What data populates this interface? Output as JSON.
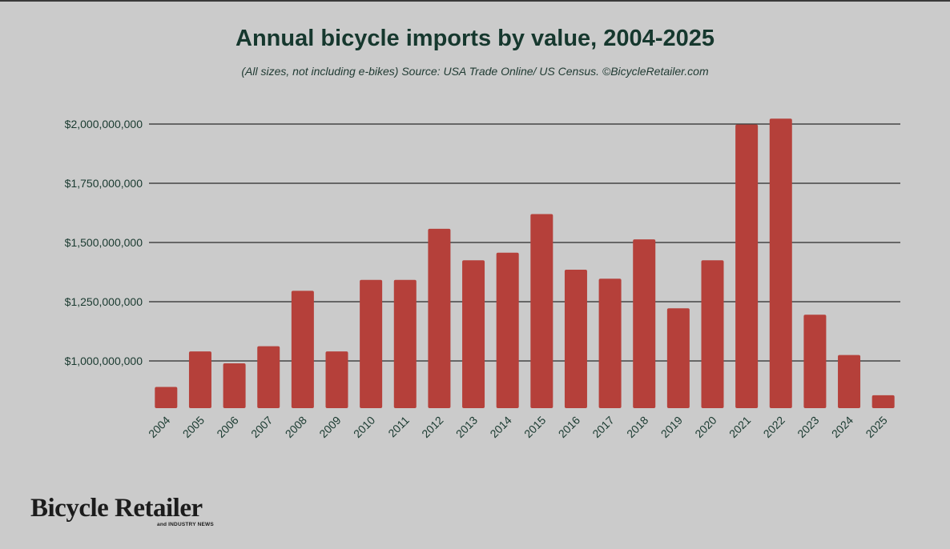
{
  "chart_data": {
    "type": "bar",
    "title": "Annual bicycle imports by value, 2004-2025",
    "subtitle": "(All sizes, not including e-bikes) Source: USA Trade Online/ US Census. ©BicycleRetailer.com",
    "categories": [
      "2004",
      "2005",
      "2006",
      "2007",
      "2008",
      "2009",
      "2010",
      "2011",
      "2012",
      "2013",
      "2014",
      "2015",
      "2016",
      "2017",
      "2018",
      "2019",
      "2020",
      "2021",
      "2022",
      "2023",
      "2024",
      "2025"
    ],
    "values": [
      890000000,
      1040000000,
      990000000,
      1062000000,
      1296000000,
      1040000000,
      1342000000,
      1342000000,
      1558000000,
      1425000000,
      1457000000,
      1620000000,
      1385000000,
      1347000000,
      1513000000,
      1222000000,
      1425000000,
      1998000000,
      2023000000,
      1195000000,
      1025000000,
      855000000
    ],
    "ylim": [
      800000000,
      2060000000
    ],
    "yticks": [
      {
        "value": 1000000000,
        "label": "$1,000,000,000"
      },
      {
        "value": 1250000000,
        "label": "$1,250,000,000"
      },
      {
        "value": 1500000000,
        "label": "$1,500,000,000"
      },
      {
        "value": 1750000000,
        "label": "$1,750,000,000"
      },
      {
        "value": 2000000000,
        "label": "$2,000,000,000"
      }
    ],
    "grid": true,
    "bar_color": "#b5403a"
  },
  "brand": {
    "name": "Bicycle Retailer",
    "tagline": "and INDUSTRY NEWS"
  }
}
